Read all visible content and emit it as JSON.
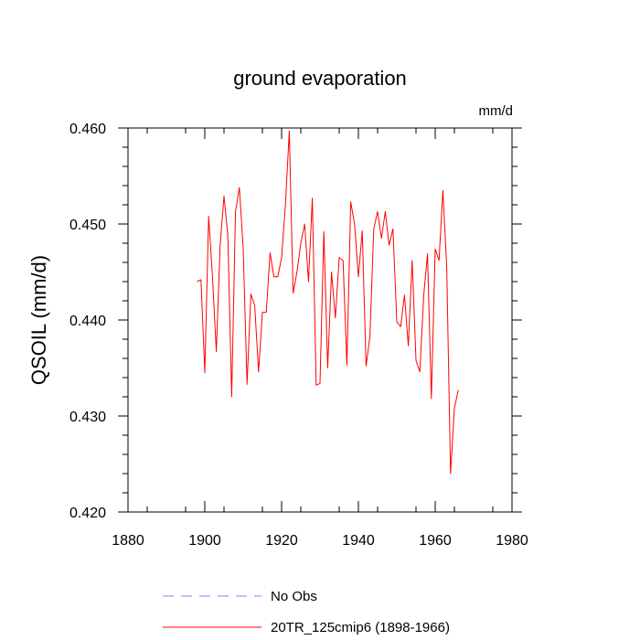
{
  "chart_data": {
    "type": "line",
    "title": "ground evaporation",
    "units": "mm/d",
    "ylabel": "QSOIL  (mm/d)",
    "xlabel": "",
    "xlim": [
      1880,
      1980
    ],
    "ylim": [
      0.42,
      0.46
    ],
    "x_ticks": [
      1880,
      1900,
      1920,
      1940,
      1960,
      1980
    ],
    "y_ticks": [
      0.42,
      0.43,
      0.44,
      0.45,
      0.46
    ],
    "x_tick_labels": [
      "1880",
      "1900",
      "1920",
      "1940",
      "1960",
      "1980"
    ],
    "y_tick_labels": [
      "0.420",
      "0.430",
      "0.440",
      "0.450",
      "0.460"
    ],
    "grid": false,
    "legend_position": "bottom",
    "series": [
      {
        "name": "20TR_125cmip6 (1898-1966)",
        "color": "#ff0000",
        "style": "solid",
        "x": [
          1898,
          1899,
          1900,
          1901,
          1902,
          1903,
          1904,
          1905,
          1906,
          1907,
          1908,
          1909,
          1910,
          1911,
          1912,
          1913,
          1914,
          1915,
          1916,
          1917,
          1918,
          1919,
          1920,
          1921,
          1922,
          1923,
          1924,
          1925,
          1926,
          1927,
          1928,
          1929,
          1930,
          1931,
          1932,
          1933,
          1934,
          1935,
          1936,
          1937,
          1938,
          1939,
          1940,
          1941,
          1942,
          1943,
          1944,
          1945,
          1946,
          1947,
          1948,
          1949,
          1950,
          1951,
          1952,
          1953,
          1954,
          1955,
          1956,
          1957,
          1958,
          1959,
          1960,
          1961,
          1962,
          1963,
          1964,
          1965,
          1966
        ],
        "values": [
          0.444,
          0.4442,
          0.4345,
          0.4508,
          0.4445,
          0.4367,
          0.4478,
          0.4529,
          0.4488,
          0.432,
          0.4513,
          0.4538,
          0.4475,
          0.4333,
          0.4427,
          0.4415,
          0.4346,
          0.4408,
          0.4408,
          0.447,
          0.4445,
          0.4445,
          0.4465,
          0.452,
          0.4597,
          0.4428,
          0.445,
          0.448,
          0.45,
          0.444,
          0.4527,
          0.4332,
          0.4334,
          0.4492,
          0.435,
          0.445,
          0.4402,
          0.4465,
          0.4462,
          0.4353,
          0.4523,
          0.45,
          0.4445,
          0.4493,
          0.4352,
          0.4383,
          0.4495,
          0.4513,
          0.4485,
          0.4513,
          0.4478,
          0.4495,
          0.4398,
          0.4393,
          0.4426,
          0.4373,
          0.4462,
          0.4358,
          0.4346,
          0.4425,
          0.4469,
          0.4318,
          0.4474,
          0.4462,
          0.4535,
          0.4455,
          0.424,
          0.4308,
          0.4327
        ]
      },
      {
        "name": "No Obs",
        "color": "#8080ff",
        "style": "dashed",
        "x": [],
        "values": []
      }
    ]
  }
}
